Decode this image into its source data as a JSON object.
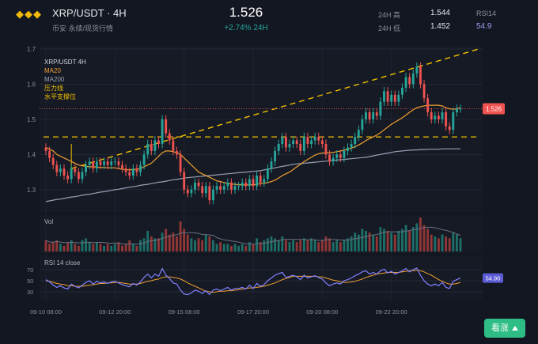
{
  "header": {
    "logo_glyphs": "◆◆◆",
    "pair": "XRP/USDT · 4H",
    "subtitle": "币安 永续/现货行情",
    "price": "1.526",
    "change": "+2.74% 24H",
    "high_label": "24H 高",
    "high_value": "1.544",
    "low_label": "24H 低",
    "low_value": "1.452",
    "rsi_label": "RSI14",
    "rsi_value": "54.9"
  },
  "legend": {
    "title": "XRP/USDT 4H",
    "ma20": "MA20",
    "ma200": "MA200",
    "resistance": "压力线",
    "support": "水平支撑位"
  },
  "panels": {
    "vol_label": "Vol",
    "rsi_label": "RSI 14 close",
    "rsi_badge": "54.90",
    "price_badge": "1.526"
  },
  "button": {
    "label": "看涨"
  },
  "colors": {
    "up": "#26a69a",
    "down": "#ef5350",
    "ma20": "#f0a030",
    "ma200": "#9aa0b4",
    "resistance": "#f0c000",
    "rsi": "#8080ff",
    "rsi_ma": "#f0a030"
  },
  "chart_data": {
    "type": "candlestick",
    "ylim": [
      1.25,
      1.7
    ],
    "yticks": [
      1.3,
      1.4,
      1.5,
      1.6,
      1.7
    ],
    "xticks": [
      {
        "i": 0,
        "label": "09-10 08:00"
      },
      {
        "i": 19,
        "label": "09-12 20:00"
      },
      {
        "i": 38,
        "label": "09-15 08:00"
      },
      {
        "i": 57,
        "label": "09-17 20:00"
      },
      {
        "i": 76,
        "label": "09-20 08:00"
      },
      {
        "i": 95,
        "label": "09-22 20:00"
      }
    ],
    "close": [
      1.41,
      1.39,
      1.37,
      1.35,
      1.36,
      1.34,
      1.33,
      1.36,
      1.35,
      1.33,
      1.35,
      1.37,
      1.38,
      1.36,
      1.38,
      1.37,
      1.38,
      1.37,
      1.38,
      1.38,
      1.37,
      1.36,
      1.35,
      1.34,
      1.36,
      1.35,
      1.37,
      1.4,
      1.43,
      1.41,
      1.44,
      1.43,
      1.5,
      1.46,
      1.44,
      1.41,
      1.4,
      1.35,
      1.3,
      1.29,
      1.3,
      1.32,
      1.31,
      1.29,
      1.31,
      1.27,
      1.3,
      1.31,
      1.3,
      1.31,
      1.32,
      1.3,
      1.31,
      1.31,
      1.32,
      1.31,
      1.33,
      1.31,
      1.34,
      1.32,
      1.33,
      1.36,
      1.38,
      1.41,
      1.43,
      1.45,
      1.42,
      1.43,
      1.44,
      1.43,
      1.41,
      1.45,
      1.43,
      1.44,
      1.45,
      1.44,
      1.43,
      1.4,
      1.38,
      1.39,
      1.4,
      1.39,
      1.41,
      1.42,
      1.43,
      1.45,
      1.47,
      1.5,
      1.52,
      1.5,
      1.52,
      1.51,
      1.55,
      1.58,
      1.55,
      1.57,
      1.55,
      1.57,
      1.59,
      1.62,
      1.6,
      1.63,
      1.65,
      1.6,
      1.56,
      1.52,
      1.5,
      1.51,
      1.5,
      1.52,
      1.48,
      1.47,
      1.52,
      1.53,
      1.53
    ],
    "ma20": [
      1.42,
      1.415,
      1.41,
      1.4,
      1.395,
      1.39,
      1.385,
      1.38,
      1.375,
      1.37,
      1.368,
      1.366,
      1.365,
      1.365,
      1.364,
      1.363,
      1.363,
      1.362,
      1.362,
      1.362,
      1.36,
      1.358,
      1.357,
      1.356,
      1.357,
      1.358,
      1.36,
      1.365,
      1.37,
      1.375,
      1.385,
      1.395,
      1.405,
      1.41,
      1.41,
      1.408,
      1.405,
      1.4,
      1.39,
      1.38,
      1.37,
      1.36,
      1.35,
      1.345,
      1.34,
      1.335,
      1.33,
      1.325,
      1.323,
      1.32,
      1.318,
      1.316,
      1.315,
      1.314,
      1.314,
      1.313,
      1.314,
      1.314,
      1.315,
      1.317,
      1.318,
      1.32,
      1.323,
      1.327,
      1.333,
      1.34,
      1.345,
      1.35,
      1.357,
      1.365,
      1.372,
      1.38,
      1.386,
      1.392,
      1.398,
      1.402,
      1.404,
      1.405,
      1.405,
      1.406,
      1.408,
      1.41,
      1.412,
      1.415,
      1.418,
      1.422,
      1.427,
      1.433,
      1.44,
      1.445,
      1.45,
      1.455,
      1.462,
      1.47,
      1.478,
      1.486,
      1.492,
      1.498,
      1.505,
      1.512,
      1.52,
      1.527,
      1.533,
      1.536,
      1.538,
      1.54,
      1.54,
      1.54,
      1.54,
      1.538,
      1.533,
      1.53,
      1.529,
      1.53,
      1.533
    ],
    "ma200": [
      1.266,
      1.268,
      1.27,
      1.272,
      1.273,
      1.275,
      1.277,
      1.279,
      1.28,
      1.282,
      1.284,
      1.286,
      1.287,
      1.289,
      1.291,
      1.293,
      1.294,
      1.296,
      1.298,
      1.3,
      1.301,
      1.303,
      1.305,
      1.307,
      1.308,
      1.31,
      1.312,
      1.314,
      1.315,
      1.317,
      1.319,
      1.321,
      1.322,
      1.324,
      1.326,
      1.328,
      1.329,
      1.331,
      1.333,
      1.334,
      1.335,
      1.336,
      1.337,
      1.338,
      1.339,
      1.34,
      1.341,
      1.342,
      1.343,
      1.344,
      1.345,
      1.346,
      1.347,
      1.348,
      1.349,
      1.35,
      1.351,
      1.352,
      1.353,
      1.354,
      1.356,
      1.358,
      1.36,
      1.362,
      1.364,
      1.366,
      1.368,
      1.37,
      1.372,
      1.373,
      1.374,
      1.375,
      1.376,
      1.377,
      1.378,
      1.379,
      1.38,
      1.381,
      1.382,
      1.383,
      1.384,
      1.385,
      1.386,
      1.387,
      1.388,
      1.389,
      1.39,
      1.391,
      1.392,
      1.394,
      1.396,
      1.398,
      1.4,
      1.402,
      1.404,
      1.406,
      1.408,
      1.409,
      1.41,
      1.411,
      1.412,
      1.413,
      1.413,
      1.414,
      1.414,
      1.415,
      1.415,
      1.415,
      1.415,
      1.416,
      1.416,
      1.416,
      1.416,
      1.416,
      1.416
    ],
    "volume": [
      0.3,
      0.2,
      0.25,
      0.3,
      0.2,
      0.15,
      0.25,
      0.3,
      0.2,
      0.15,
      0.3,
      0.35,
      0.25,
      0.2,
      0.25,
      0.2,
      0.15,
      0.2,
      0.15,
      0.2,
      0.25,
      0.15,
      0.2,
      0.3,
      0.2,
      0.15,
      0.3,
      0.35,
      0.55,
      0.4,
      0.35,
      0.35,
      0.5,
      0.6,
      0.45,
      0.5,
      0.4,
      0.8,
      0.6,
      0.45,
      0.35,
      0.3,
      0.35,
      0.3,
      0.45,
      0.4,
      0.3,
      0.2,
      0.25,
      0.2,
      0.2,
      0.15,
      0.2,
      0.15,
      0.2,
      0.15,
      0.25,
      0.2,
      0.35,
      0.25,
      0.3,
      0.35,
      0.4,
      0.35,
      0.3,
      0.4,
      0.3,
      0.25,
      0.3,
      0.25,
      0.3,
      0.35,
      0.3,
      0.35,
      0.3,
      0.25,
      0.3,
      0.4,
      0.35,
      0.25,
      0.3,
      0.25,
      0.3,
      0.35,
      0.4,
      0.5,
      0.45,
      0.6,
      0.55,
      0.5,
      0.45,
      0.4,
      0.65,
      0.6,
      0.55,
      0.5,
      0.45,
      0.55,
      0.6,
      0.7,
      0.55,
      0.65,
      0.75,
      0.9,
      0.7,
      0.6,
      0.45,
      0.4,
      0.35,
      0.45,
      0.4,
      0.35,
      0.5,
      0.45,
      0.35
    ],
    "rsi": [
      52,
      48,
      42,
      38,
      41,
      37,
      35,
      44,
      40,
      37,
      42,
      47,
      50,
      44,
      49,
      46,
      48,
      45,
      48,
      49,
      46,
      43,
      41,
      39,
      45,
      42,
      48,
      56,
      62,
      55,
      62,
      58,
      72,
      60,
      54,
      46,
      44,
      33,
      26,
      25,
      28,
      33,
      31,
      27,
      32,
      25,
      33,
      35,
      32,
      35,
      38,
      33,
      36,
      36,
      38,
      35,
      42,
      36,
      45,
      40,
      43,
      50,
      55,
      60,
      63,
      65,
      56,
      58,
      60,
      57,
      52,
      60,
      55,
      57,
      59,
      56,
      53,
      46,
      41,
      44,
      46,
      44,
      50,
      52,
      55,
      59,
      62,
      66,
      68,
      62,
      65,
      62,
      68,
      71,
      64,
      67,
      62,
      65,
      68,
      72,
      66,
      70,
      73,
      60,
      50,
      44,
      41,
      44,
      41,
      47,
      38,
      36,
      49,
      52,
      54.9
    ],
    "rsi_ma": [
      50,
      49,
      47,
      45,
      44,
      43,
      41,
      41,
      40,
      40,
      40,
      41,
      42,
      43,
      44,
      45,
      45,
      46,
      46,
      47,
      47,
      46,
      45,
      44,
      44,
      44,
      45,
      47,
      49,
      50,
      52,
      53,
      56,
      57,
      57,
      56,
      55,
      53,
      50,
      46,
      43,
      40,
      37,
      34,
      31,
      30,
      29,
      30,
      31,
      31,
      32,
      32,
      33,
      34,
      35,
      36,
      37,
      37,
      38,
      39,
      40,
      42,
      44,
      46,
      49,
      52,
      54,
      56,
      58,
      58,
      58,
      58,
      58,
      58,
      58,
      57,
      57,
      55,
      53,
      51,
      50,
      48,
      47,
      47,
      48,
      49,
      51,
      53,
      56,
      58,
      60,
      62,
      63,
      64,
      65,
      65,
      65,
      65,
      66,
      67,
      68,
      68,
      69,
      68,
      66,
      63,
      60,
      56,
      52,
      49,
      46,
      44,
      44,
      45,
      47
    ]
  }
}
